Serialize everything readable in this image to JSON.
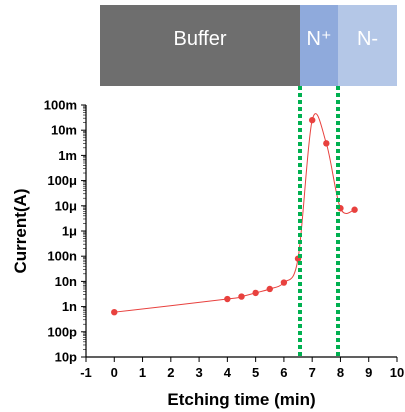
{
  "chart_data": {
    "type": "scatter",
    "xlabel": "Etching time (min)",
    "ylabel": "Current(A)",
    "xlim": [
      -1,
      10
    ],
    "ylim_log10": [
      -11,
      -1
    ],
    "x_scale": "linear",
    "y_scale": "log",
    "x_ticks": [
      -1,
      0,
      1,
      2,
      3,
      4,
      5,
      6,
      7,
      8,
      9,
      10
    ],
    "x_tick_labels": [
      "-1",
      "0",
      "1",
      "2",
      "3",
      "4",
      "5",
      "6",
      "7",
      "8",
      "9",
      "10"
    ],
    "y_ticks_log10": [
      -11,
      -10,
      -9,
      -8,
      -7,
      -6,
      -5,
      -4,
      -3,
      -2,
      -1
    ],
    "y_tick_labels": [
      "10p",
      "100p",
      "1n",
      "10n",
      "100n",
      "1μ",
      "10μ",
      "100μ",
      "1m",
      "10m",
      "100m"
    ],
    "grid": false,
    "series": [
      {
        "color": "#e8413e",
        "x": [
          0,
          4,
          4.5,
          5,
          5.5,
          6,
          6.5,
          7,
          7.5,
          8,
          8.5
        ],
        "y": [
          6e-10,
          2e-09,
          2.5e-09,
          3.5e-09,
          5e-09,
          9e-09,
          8e-08,
          0.025,
          0.003,
          8e-06,
          7e-06
        ]
      }
    ],
    "reference_lines": {
      "color": "#00b050",
      "style": "dotted",
      "x": [
        6.55,
        7.9
      ]
    },
    "regions": [
      {
        "label": "Buffer",
        "x_from": -1,
        "x_to": 6.55,
        "color": "#6e6e6e"
      },
      {
        "label": "N⁺",
        "x_from": 6.55,
        "x_to": 7.6,
        "color": "#8faadc"
      },
      {
        "label": "N-",
        "x_from": 7.6,
        "x_to": 10,
        "color": "#b4c7e7"
      }
    ]
  }
}
